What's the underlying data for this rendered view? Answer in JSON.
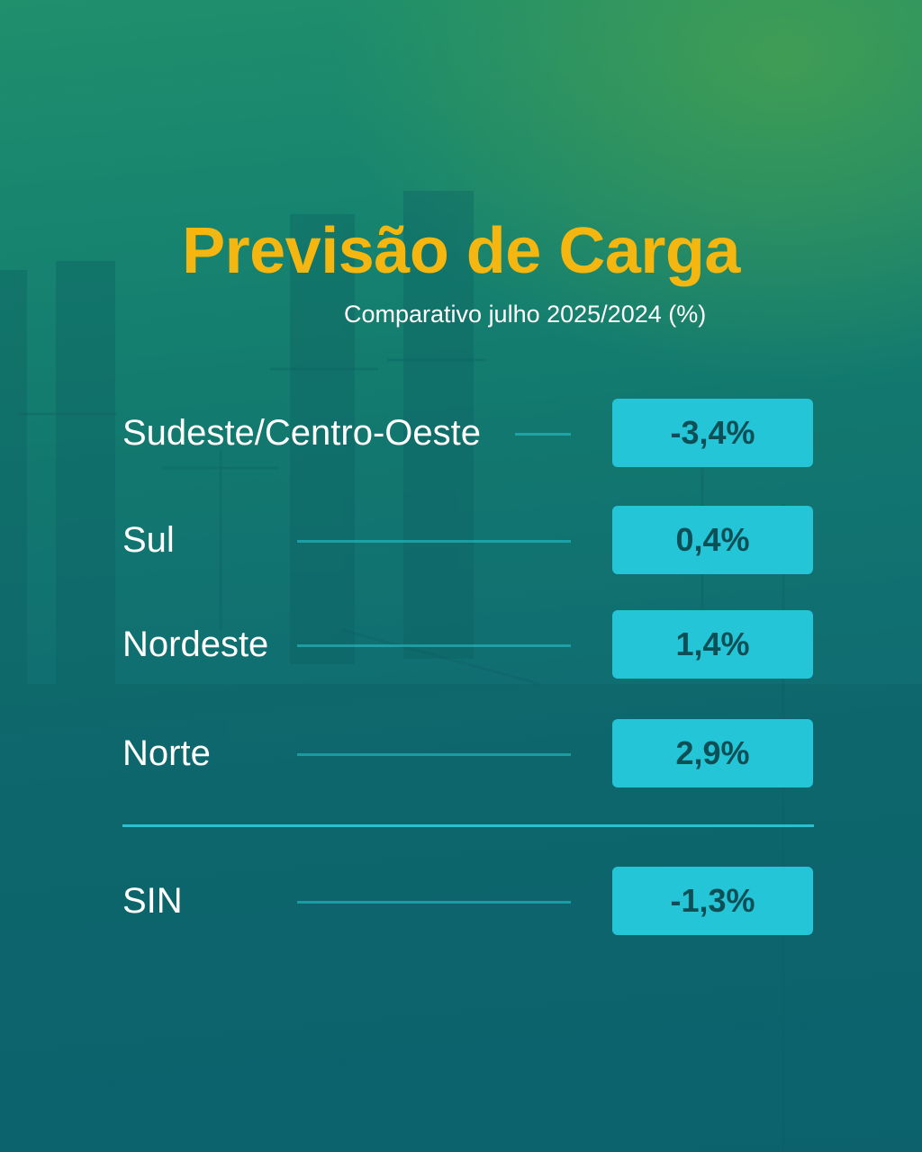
{
  "header": {
    "title": "Previsão de Carga",
    "subtitle": "Comparativo julho 2025/2024 (%)"
  },
  "rows": [
    {
      "label": "Sudeste/Centro-Oeste",
      "value": "-3,4%"
    },
    {
      "label": "Sul",
      "value": "0,4%"
    },
    {
      "label": "Nordeste",
      "value": "1,4%"
    },
    {
      "label": "Norte",
      "value": "2,9%"
    }
  ],
  "total": {
    "label": "SIN",
    "value": "-1,3%"
  },
  "colors": {
    "title": "#f5b70f",
    "value_box": "#23c5d6",
    "value_text": "#0d4f57",
    "divider": "#24c2d4"
  }
}
